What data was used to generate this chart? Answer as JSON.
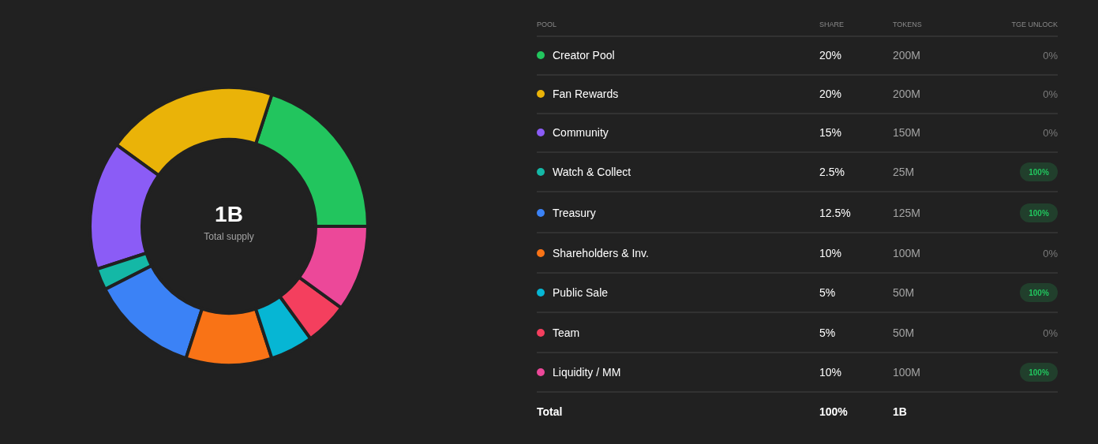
{
  "chart_data": [
    {
      "type": "donut",
      "categories": [
        "Creator Pool",
        "Fan Rewards",
        "Community",
        "Watch & Collect",
        "Treasury",
        "Shareholders & Inv.",
        "Public Sale",
        "Team",
        "Liquidity / MM"
      ],
      "values": [
        20,
        20,
        15,
        2.5,
        12.5,
        10,
        5,
        5,
        10
      ],
      "value_labels": [
        "20%",
        "20%",
        "15%",
        "2.5%",
        "12.5%",
        "10%",
        "5%",
        "5%",
        "10%"
      ],
      "colors": [
        "#22c55e",
        "#eab308",
        "#8b5cf6",
        "#14b8a6",
        "#3b82f6",
        "#f97316",
        "#06b6d4",
        "#f43f5e",
        "#ec4899"
      ],
      "legend": "right",
      "annotations": [
        "1B",
        "Total supply"
      ]
    },
    {
      "type": "other",
      "annotations": [
        "POOL",
        "SHARE",
        "TOKENS",
        "TGE UNLOCK",
        "200M",
        "0%",
        "200M",
        "0%",
        "150M",
        "0%",
        "25M",
        "100%",
        "125M",
        "100%",
        "100M",
        "0%",
        "50M",
        "100%",
        "50M",
        "0%",
        "100M",
        "100%",
        "Total",
        "100%",
        "1B"
      ],
      "colors": [
        null,
        null,
        null,
        null,
        null,
        null,
        null,
        null,
        null,
        null,
        null,
        "#22c55e",
        null,
        "#22c55e",
        null,
        null,
        null,
        "#22c55e",
        null,
        null,
        null,
        "#22c55e",
        null,
        null,
        null
      ]
    }
  ]
}
